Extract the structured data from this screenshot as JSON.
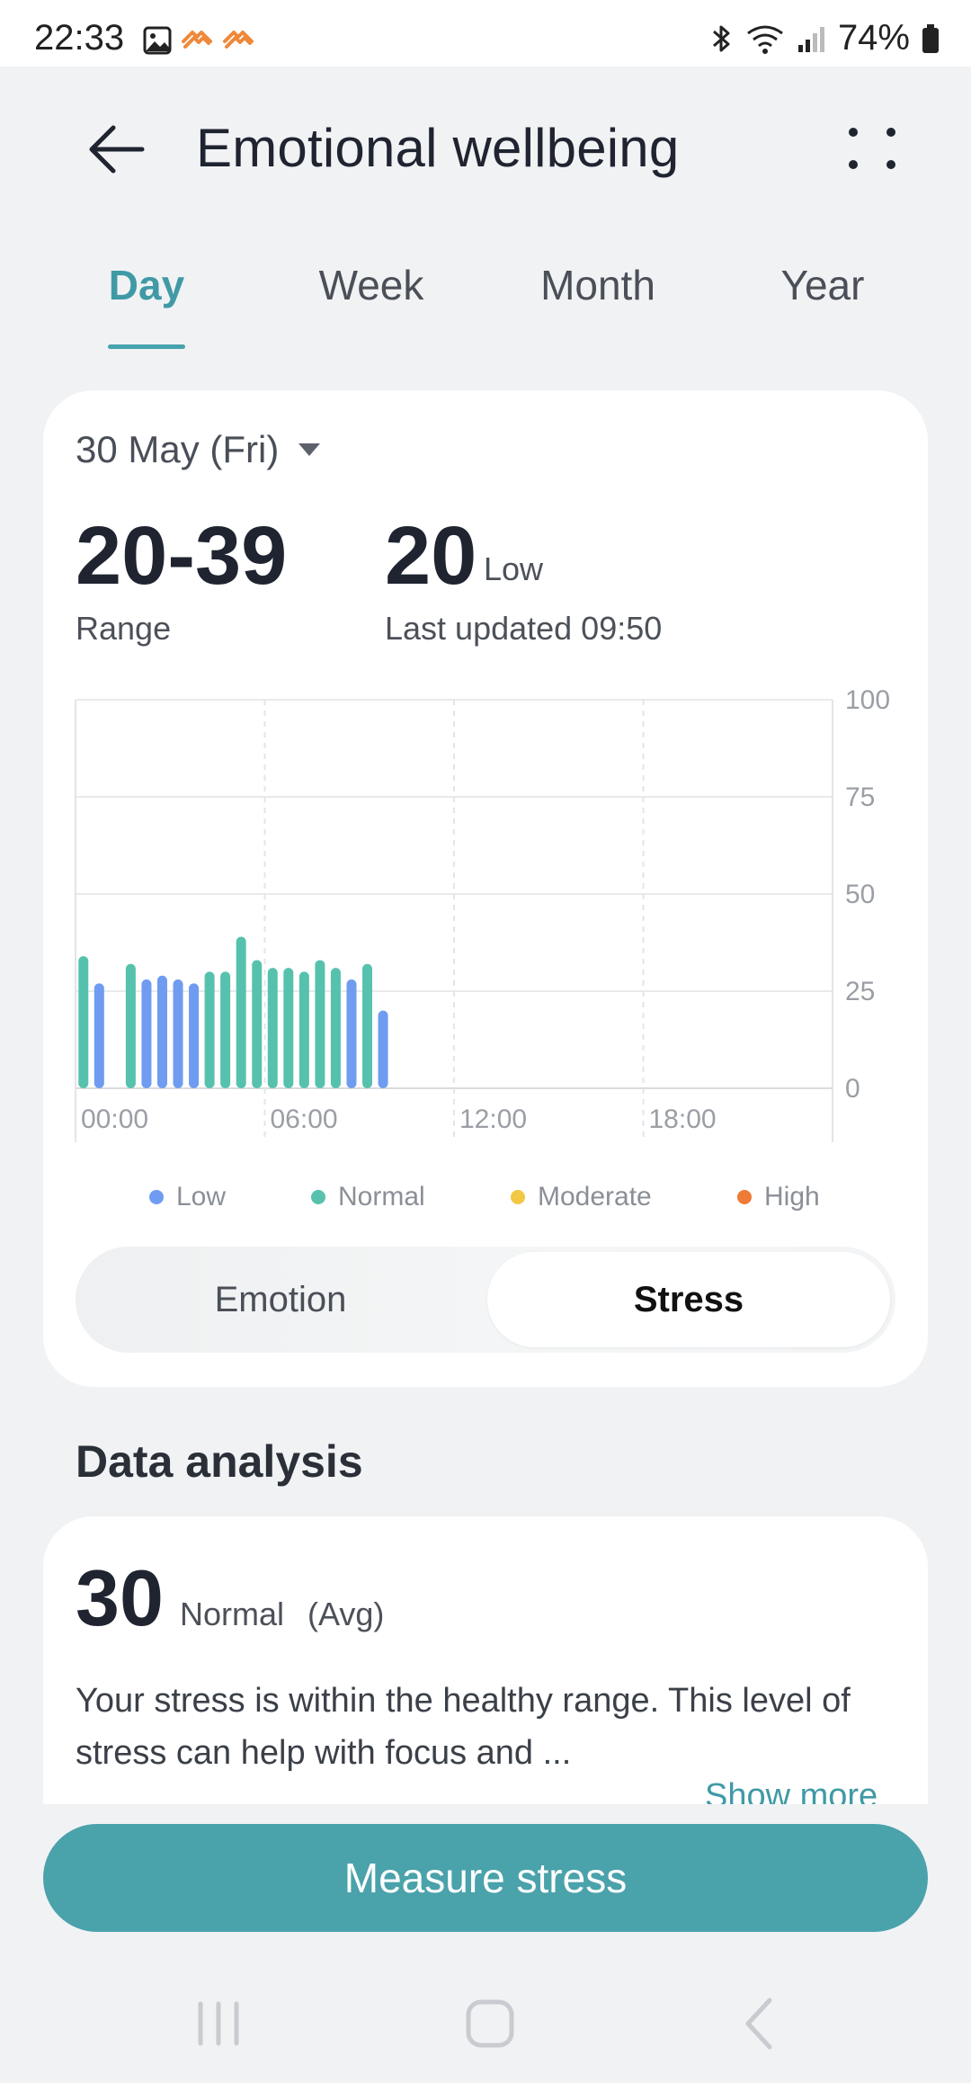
{
  "status_bar": {
    "time": "22:33",
    "battery": "74%",
    "icons": [
      "gallery-icon",
      "health-icon",
      "health-icon",
      "bluetooth-icon",
      "wifi-icon",
      "signal-icon",
      "battery-icon"
    ]
  },
  "header": {
    "title": "Emotional wellbeing",
    "back_icon": "arrow-left-icon",
    "more_icon": "more-dots-icon"
  },
  "tabs": [
    {
      "label": "Day",
      "active": true
    },
    {
      "label": "Week",
      "active": false
    },
    {
      "label": "Month",
      "active": false
    },
    {
      "label": "Year",
      "active": false
    }
  ],
  "summary": {
    "date": "30 May (Fri)",
    "range_value": "20-39",
    "range_label": "Range",
    "latest_value": "20",
    "latest_level": "Low",
    "last_updated": "Last updated 09:50"
  },
  "chart_data": {
    "type": "bar",
    "x_ticks": [
      "00:00",
      "06:00",
      "12:00",
      "18:00"
    ],
    "y_ticks": [
      "0",
      "25",
      "50",
      "75",
      "100"
    ],
    "ylim": [
      0,
      100
    ],
    "xlim_hours": [
      0,
      24
    ],
    "grid": true,
    "legend_position": "bottom",
    "series": [
      {
        "name": "Low",
        "color": "#6f9cf0"
      },
      {
        "name": "Normal",
        "color": "#56c2ad"
      },
      {
        "name": "Moderate",
        "color": "#f2c744"
      },
      {
        "name": "High",
        "color": "#ee7b36"
      }
    ],
    "bars": [
      {
        "hour": 0.25,
        "value": 34,
        "level": "Normal"
      },
      {
        "hour": 0.75,
        "value": 27,
        "level": "Low"
      },
      {
        "hour": 1.75,
        "value": 32,
        "level": "Normal"
      },
      {
        "hour": 2.25,
        "value": 28,
        "level": "Low"
      },
      {
        "hour": 2.75,
        "value": 29,
        "level": "Low"
      },
      {
        "hour": 3.25,
        "value": 28,
        "level": "Low"
      },
      {
        "hour": 3.75,
        "value": 27,
        "level": "Low"
      },
      {
        "hour": 4.25,
        "value": 30,
        "level": "Normal"
      },
      {
        "hour": 4.75,
        "value": 30,
        "level": "Normal"
      },
      {
        "hour": 5.25,
        "value": 39,
        "level": "Normal"
      },
      {
        "hour": 5.75,
        "value": 33,
        "level": "Normal"
      },
      {
        "hour": 6.25,
        "value": 31,
        "level": "Normal"
      },
      {
        "hour": 6.75,
        "value": 31,
        "level": "Normal"
      },
      {
        "hour": 7.25,
        "value": 30,
        "level": "Normal"
      },
      {
        "hour": 7.75,
        "value": 33,
        "level": "Normal"
      },
      {
        "hour": 8.25,
        "value": 31,
        "level": "Normal"
      },
      {
        "hour": 8.75,
        "value": 28,
        "level": "Low"
      },
      {
        "hour": 9.25,
        "value": 32,
        "level": "Normal"
      },
      {
        "hour": 9.75,
        "value": 20,
        "level": "Low"
      }
    ]
  },
  "toggle": {
    "options": [
      "Emotion",
      "Stress"
    ],
    "selected": "Stress"
  },
  "analysis": {
    "title": "Data analysis",
    "avg_value": "30",
    "avg_level": "Normal",
    "avg_tag": "(Avg)",
    "text": "Your stress is within the healthy range. This level of stress can help with focus and ...",
    "show_more": "Show more"
  },
  "action": {
    "measure_label": "Measure stress"
  },
  "nav": {
    "icons": [
      "recents-icon",
      "home-icon",
      "back-icon"
    ]
  }
}
